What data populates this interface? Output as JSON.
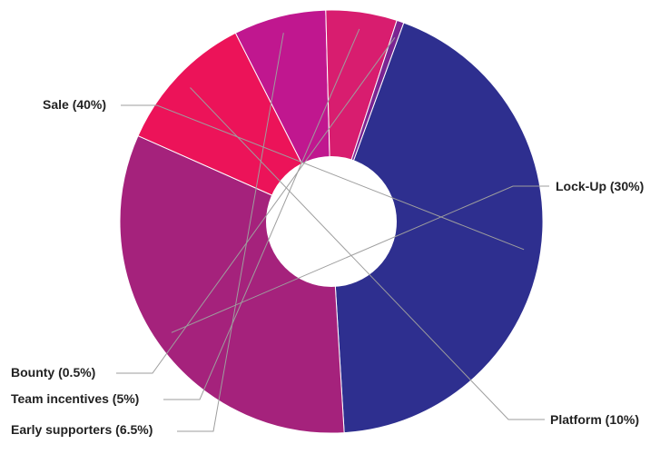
{
  "chart_data": {
    "type": "pie",
    "donut": true,
    "title": "",
    "slices": [
      {
        "label": "Sale (40%)",
        "name": "Sale",
        "value": 40,
        "color": "#2e2f8f"
      },
      {
        "label": "Lock-Up (30%)",
        "name": "Lock-Up",
        "value": 30,
        "color": "#a5227c"
      },
      {
        "label": "Platform (10%)",
        "name": "Platform",
        "value": 10,
        "color": "#ec1359"
      },
      {
        "label": "Early supporters (6.5%)",
        "name": "Early supporters",
        "value": 6.5,
        "color": "#c0178f"
      },
      {
        "label": "Team incentives (5%)",
        "name": "Team incentives",
        "value": 5,
        "color": "#d81d6f"
      },
      {
        "label": "Bounty (0.5%)",
        "name": "Bounty",
        "value": 0.5,
        "color": "#7a2592"
      }
    ],
    "start_angle_deg": 20,
    "direction": "clockwise",
    "legend": "none",
    "labels": "outside-with-leader-lines"
  }
}
